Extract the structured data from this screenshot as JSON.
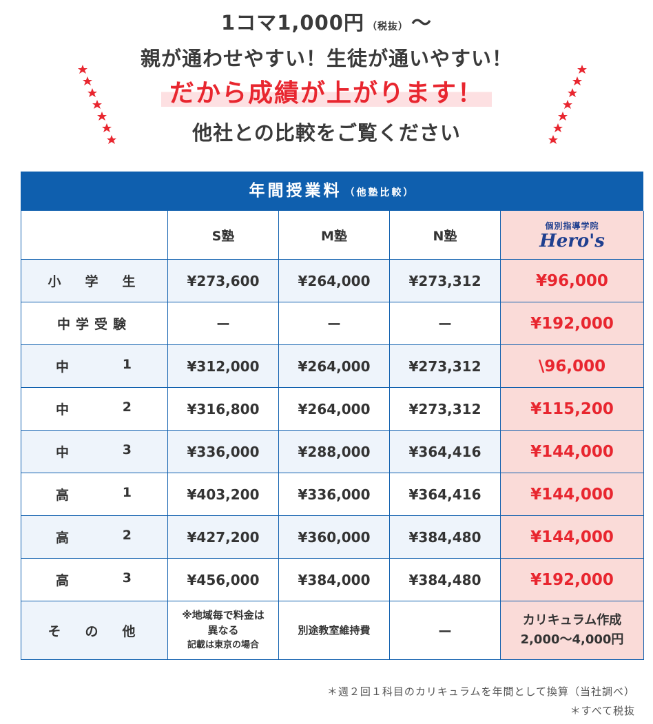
{
  "header": {
    "line1_main": "1コマ1,000円",
    "line1_small": "（税抜）",
    "line1_tilde": "～",
    "line2": "親が通わせやすい！生徒が通いやすい！",
    "line3": "だから成績が上がります！",
    "line4": "他社との比較をご覧ください"
  },
  "table": {
    "title": "年間授業料",
    "title_sub": "（他塾比較）",
    "columns": [
      "S塾",
      "M塾",
      "N塾"
    ],
    "heros_logo_small": "個別指導学院",
    "heros_logo_big": "Hero's",
    "rows": [
      {
        "label_a": "小　学　生",
        "s": "¥273,600",
        "m": "¥264,000",
        "n": "¥273,312",
        "heros": "¥96,000"
      },
      {
        "label_a": "中学受験",
        "s": "ー",
        "m": "ー",
        "n": "ー",
        "heros": "¥192,000"
      },
      {
        "label_a": "中",
        "label_b": "1",
        "s": "¥312,000",
        "m": "¥264,000",
        "n": "¥273,312",
        "heros": "\\96,000"
      },
      {
        "label_a": "中",
        "label_b": "2",
        "s": "¥316,800",
        "m": "¥264,000",
        "n": "¥273,312",
        "heros": "¥115,200"
      },
      {
        "label_a": "中",
        "label_b": "3",
        "s": "¥336,000",
        "m": "¥288,000",
        "n": "¥364,416",
        "heros": "¥144,000"
      },
      {
        "label_a": "高",
        "label_b": "1",
        "s": "¥403,200",
        "m": "¥336,000",
        "n": "¥364,416",
        "heros": "¥144,000"
      },
      {
        "label_a": "高",
        "label_b": "2",
        "s": "¥427,200",
        "m": "¥360,000",
        "n": "¥384,480",
        "heros": "¥144,000"
      },
      {
        "label_a": "高",
        "label_b": "3",
        "s": "¥456,000",
        "m": "¥384,000",
        "n": "¥384,480",
        "heros": "¥192,000"
      }
    ],
    "other": {
      "label": "そ　の　他",
      "s_line1": "※地域毎で料金は",
      "s_line2": "異なる",
      "s_line3": "記載は東京の場合",
      "m": "別途教室維持費",
      "n": "ー",
      "heros_line1": "カリキュラム作成",
      "heros_line2": "2,000～4,000円"
    }
  },
  "footnotes": {
    "note1": "＊週２回１科目のカリキュラムを年間として換算（当社調べ）",
    "note2": "＊すべて税抜"
  },
  "colors": {
    "brand_blue": "#0f5fae",
    "accent_red": "#e8262f",
    "heros_bg": "#fadbd8"
  }
}
